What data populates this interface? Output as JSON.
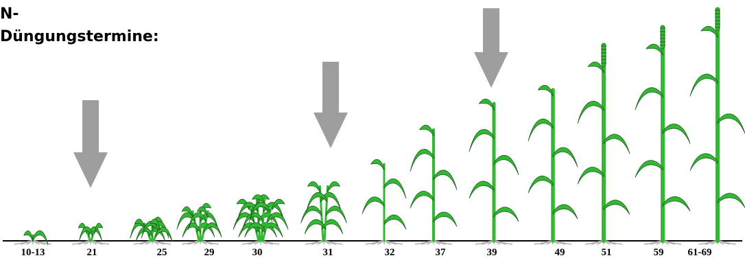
{
  "heading": {
    "line1": "N-",
    "line2": "Düngungstermine:"
  },
  "colors": {
    "plant": "#33b833",
    "plant_outline": "#1a5a1a",
    "arrow": "#9e9e9e",
    "ground": "#000000",
    "roots": "#b0b0b0",
    "text": "#000000"
  },
  "stages": [
    {
      "label": "10-13",
      "arrow": false
    },
    {
      "label": "21",
      "arrow": true
    },
    {
      "label": "25",
      "arrow": false
    },
    {
      "label": "29",
      "arrow": false
    },
    {
      "label": "30",
      "arrow": false
    },
    {
      "label": "31",
      "arrow": true
    },
    {
      "label": "32",
      "arrow": false
    },
    {
      "label": "37",
      "arrow": false
    },
    {
      "label": "39",
      "arrow": true
    },
    {
      "label": "49",
      "arrow": false
    },
    {
      "label": "51",
      "arrow": false
    },
    {
      "label": "59",
      "arrow": false
    },
    {
      "label": "61-69",
      "arrow": false
    }
  ]
}
